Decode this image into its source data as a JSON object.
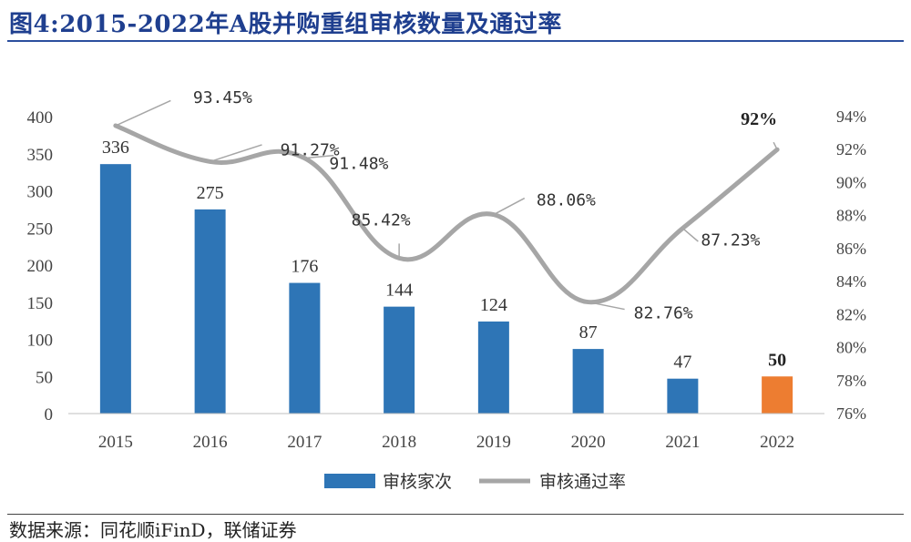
{
  "title": "图4:2015-2022年A股并购重组审核数量及通过率",
  "source": "数据来源：同花顺iFinD，联储证券",
  "chart_data": {
    "type": "bar",
    "categories": [
      "2015",
      "2016",
      "2017",
      "2018",
      "2019",
      "2020",
      "2021",
      "2022"
    ],
    "series": [
      {
        "name": "审核家次",
        "type": "bar",
        "axis": "left",
        "color": "#2e75b6",
        "highlight_color": "#ed7d31",
        "highlight_index": 7,
        "values": [
          336,
          275,
          176,
          144,
          124,
          87,
          47,
          50
        ],
        "labels": [
          "336",
          "275",
          "176",
          "144",
          "124",
          "87",
          "47",
          "50"
        ]
      },
      {
        "name": "审核通过率",
        "type": "line",
        "axis": "right",
        "color": "#a6a6a6",
        "values": [
          93.45,
          91.27,
          91.48,
          85.42,
          88.06,
          82.76,
          87.23,
          92
        ],
        "labels": [
          "93.45%",
          "91.27%",
          "91.48%",
          "85.42%",
          "88.06%",
          "82.76%",
          "87.23%",
          "92%"
        ]
      }
    ],
    "y_left": {
      "ticks": [
        "0",
        "50",
        "100",
        "150",
        "200",
        "250",
        "300",
        "350",
        "400"
      ],
      "ylim": [
        0,
        400
      ]
    },
    "y_right": {
      "ticks": [
        "76%",
        "78%",
        "80%",
        "82%",
        "84%",
        "86%",
        "88%",
        "90%",
        "92%",
        "94%"
      ],
      "ylim": [
        76,
        94
      ]
    },
    "legend": {
      "position": "bottom",
      "items": [
        "审核家次",
        "审核通过率"
      ]
    },
    "grid": false
  }
}
